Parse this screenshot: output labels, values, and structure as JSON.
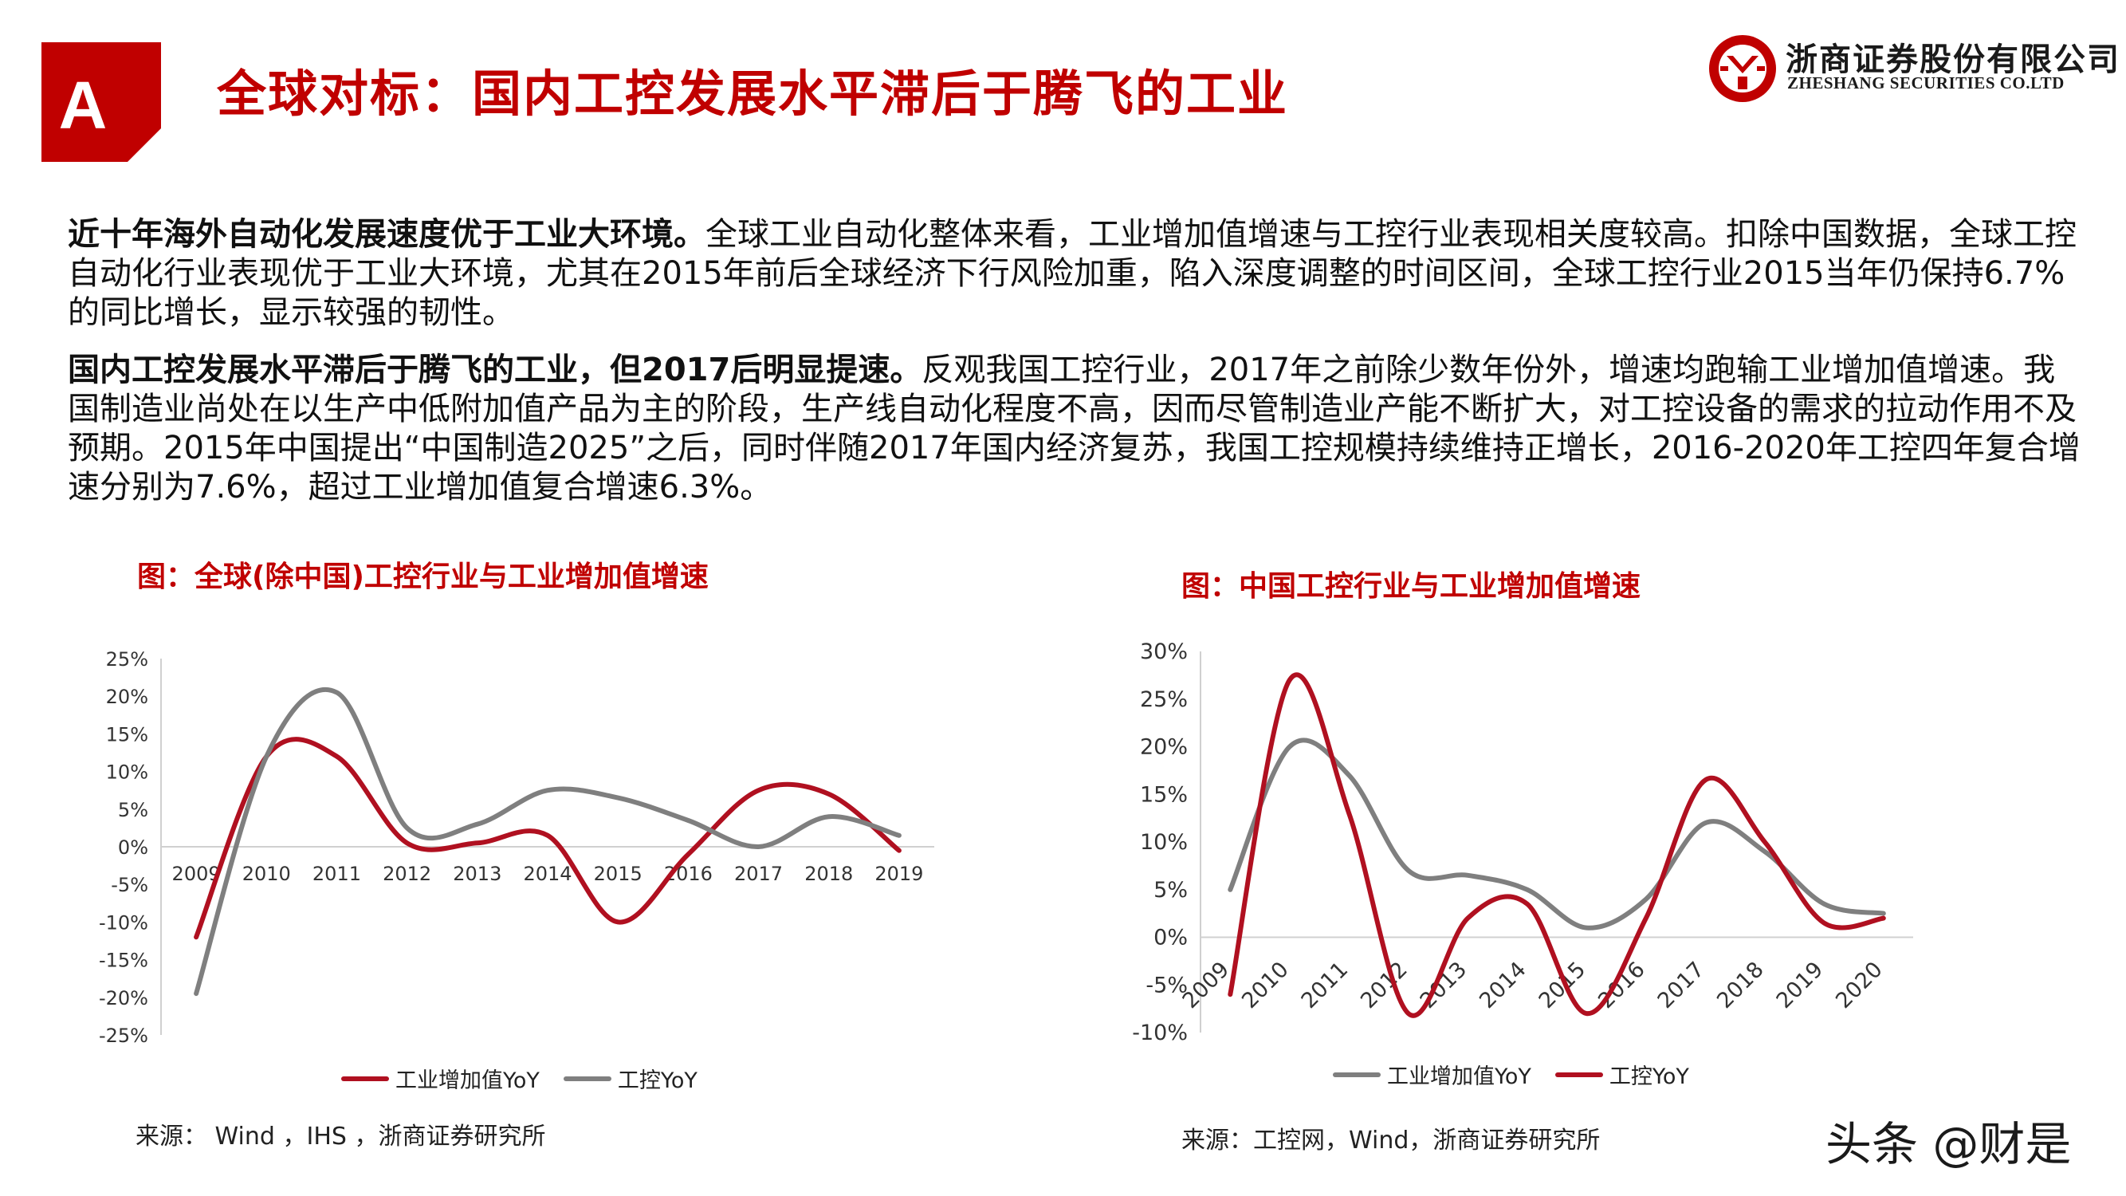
{
  "header": {
    "badge_letter": "A",
    "title": "全球对标：国内工控发展水平滞后于腾飞的工业",
    "colors": {
      "accent": "#c00000"
    }
  },
  "logo": {
    "icon": "zheshang-logo-icon",
    "name_cn": "浙商证券股份有限公司",
    "name_en": "ZHESHANG SECURITIES CO.LTD"
  },
  "body": {
    "p1_bold": "近十年海外自动化发展速度优于工业大环境。",
    "p1_rest": "全球工业自动化整体来看，工业增加值增速与工控行业表现相关度较高。扣除中国数据，全球工控自动化行业表现优于工业大环境，尤其在2015年前后全球经济下行风险加重，陷入深度调整的时间区间，全球工控行业2015当年仍保持6.7%的同比增长，显示较强的韧性。",
    "p2_bold": "国内工控发展水平滞后于腾飞的工业，但2017后明显提速。",
    "p2_rest": "反观我国工控行业，2017年之前除少数年份外，增速均跑输工业增加值增速。我国制造业尚处在以生产中低附加值产品为主的阶段，生产线自动化程度不高，因而尽管制造业产能不断扩大，对工控设备的需求的拉动作用不及预期。2015年中国提出“中国制造2025”之后，同时伴随2017年国内经济复苏，我国工控规模持续维持正增长，2016-2020年工控四年复合增速分别为7.6%，超过工业增加值复合增速6.3%。"
  },
  "figure1": {
    "title": "图：全球(除中国)工控行业与工业增加值增速",
    "source": "来源： Wind ，IHS ，浙商证券研究所"
  },
  "figure2": {
    "title": "图：中国工控行业与工业增加值增速",
    "source": "来源：工控网，Wind，浙商证券研究所"
  },
  "watermark": "头条 @财是",
  "chart_data": [
    {
      "type": "line",
      "title": "图：全球(除中国)工控行业与工业增加值增速",
      "x": [
        "2009",
        "2010",
        "2011",
        "2012",
        "2013",
        "2014",
        "2015",
        "2016",
        "2017",
        "2018",
        "2019"
      ],
      "y_ticks": [
        "25%",
        "20%",
        "15%",
        "10%",
        "5%",
        "0%",
        "-5%",
        "-10%",
        "-15%",
        "-20%",
        "-25%"
      ],
      "ylim": [
        -25,
        25
      ],
      "grid": false,
      "legend_position": "bottom",
      "series": [
        {
          "name": "工业增加值YoY",
          "color": "#b01020",
          "values": [
            -12,
            12,
            12,
            0.5,
            0.5,
            1.5,
            -10,
            -1,
            7.5,
            7,
            -0.5
          ]
        },
        {
          "name": "工控YoY",
          "color": "#7f7f7f",
          "values": [
            -19.5,
            12,
            20.5,
            2.5,
            3,
            7.5,
            6.5,
            3.5,
            0,
            4,
            1.5
          ]
        }
      ]
    },
    {
      "type": "line",
      "title": "图：中国工控行业与工业增加值增速",
      "x": [
        "2009",
        "2010",
        "2011",
        "2012",
        "2013",
        "2014",
        "2015",
        "2016",
        "2017",
        "2018",
        "2019",
        "2020"
      ],
      "y_ticks": [
        "30%",
        "25%",
        "20%",
        "15%",
        "10%",
        "5%",
        "0%",
        "-5%",
        "-10%"
      ],
      "ylim": [
        -10,
        30
      ],
      "grid": false,
      "legend_position": "bottom",
      "series": [
        {
          "name": "工业增加值YoY",
          "color": "#7f7f7f",
          "values": [
            5,
            20,
            17,
            7,
            6.5,
            5,
            1,
            4,
            12,
            9,
            3.5,
            2.5
          ]
        },
        {
          "name": "工控YoY",
          "color": "#b01020",
          "values": [
            -6,
            27,
            13,
            -8,
            2,
            3.5,
            -8,
            2,
            16.5,
            10,
            1.5,
            2
          ]
        }
      ]
    }
  ]
}
